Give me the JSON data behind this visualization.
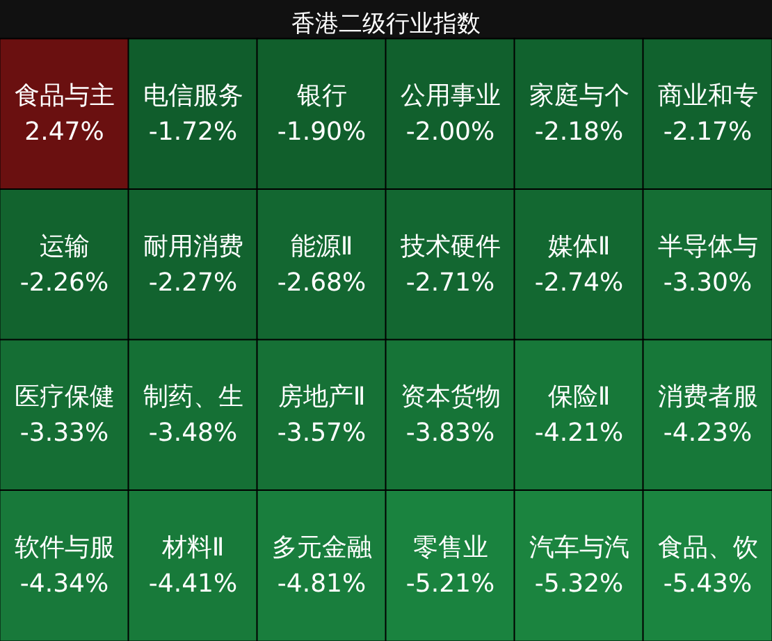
{
  "chart_data": {
    "type": "other",
    "title": "香港二级行业指数",
    "categories": [
      "食品与主",
      "电信服务",
      "银行",
      "公用事业",
      "家庭与个",
      "商业和专",
      "运输",
      "耐用消费",
      "能源Ⅱ",
      "技术硬件",
      "媒体Ⅱ",
      "半导体与",
      "医疗保健",
      "制药、生",
      "房地产Ⅱ",
      "资本货物",
      "保险Ⅱ",
      "消费者服",
      "软件与服",
      "材料Ⅱ",
      "多元金融",
      "零售业",
      "汽车与汽",
      "食品、饮"
    ],
    "values": [
      2.47,
      -1.72,
      -1.9,
      -2.0,
      -2.18,
      -2.17,
      -2.26,
      -2.27,
      -2.68,
      -2.71,
      -2.74,
      -3.3,
      -3.33,
      -3.48,
      -3.57,
      -3.83,
      -4.21,
      -4.23,
      -4.34,
      -4.41,
      -4.81,
      -5.21,
      -5.32,
      -5.43
    ],
    "value_labels": [
      "2.47%",
      "-1.72%",
      "-1.90%",
      "-2.00%",
      "-2.18%",
      "-2.17%",
      "-2.26%",
      "-2.27%",
      "-2.68%",
      "-2.71%",
      "-2.74%",
      "-3.30%",
      "-3.33%",
      "-3.48%",
      "-3.57%",
      "-3.83%",
      "-4.21%",
      "-4.23%",
      "-4.34%",
      "-4.41%",
      "-4.81%",
      "-5.21%",
      "-5.32%",
      "-5.43%"
    ]
  }
}
